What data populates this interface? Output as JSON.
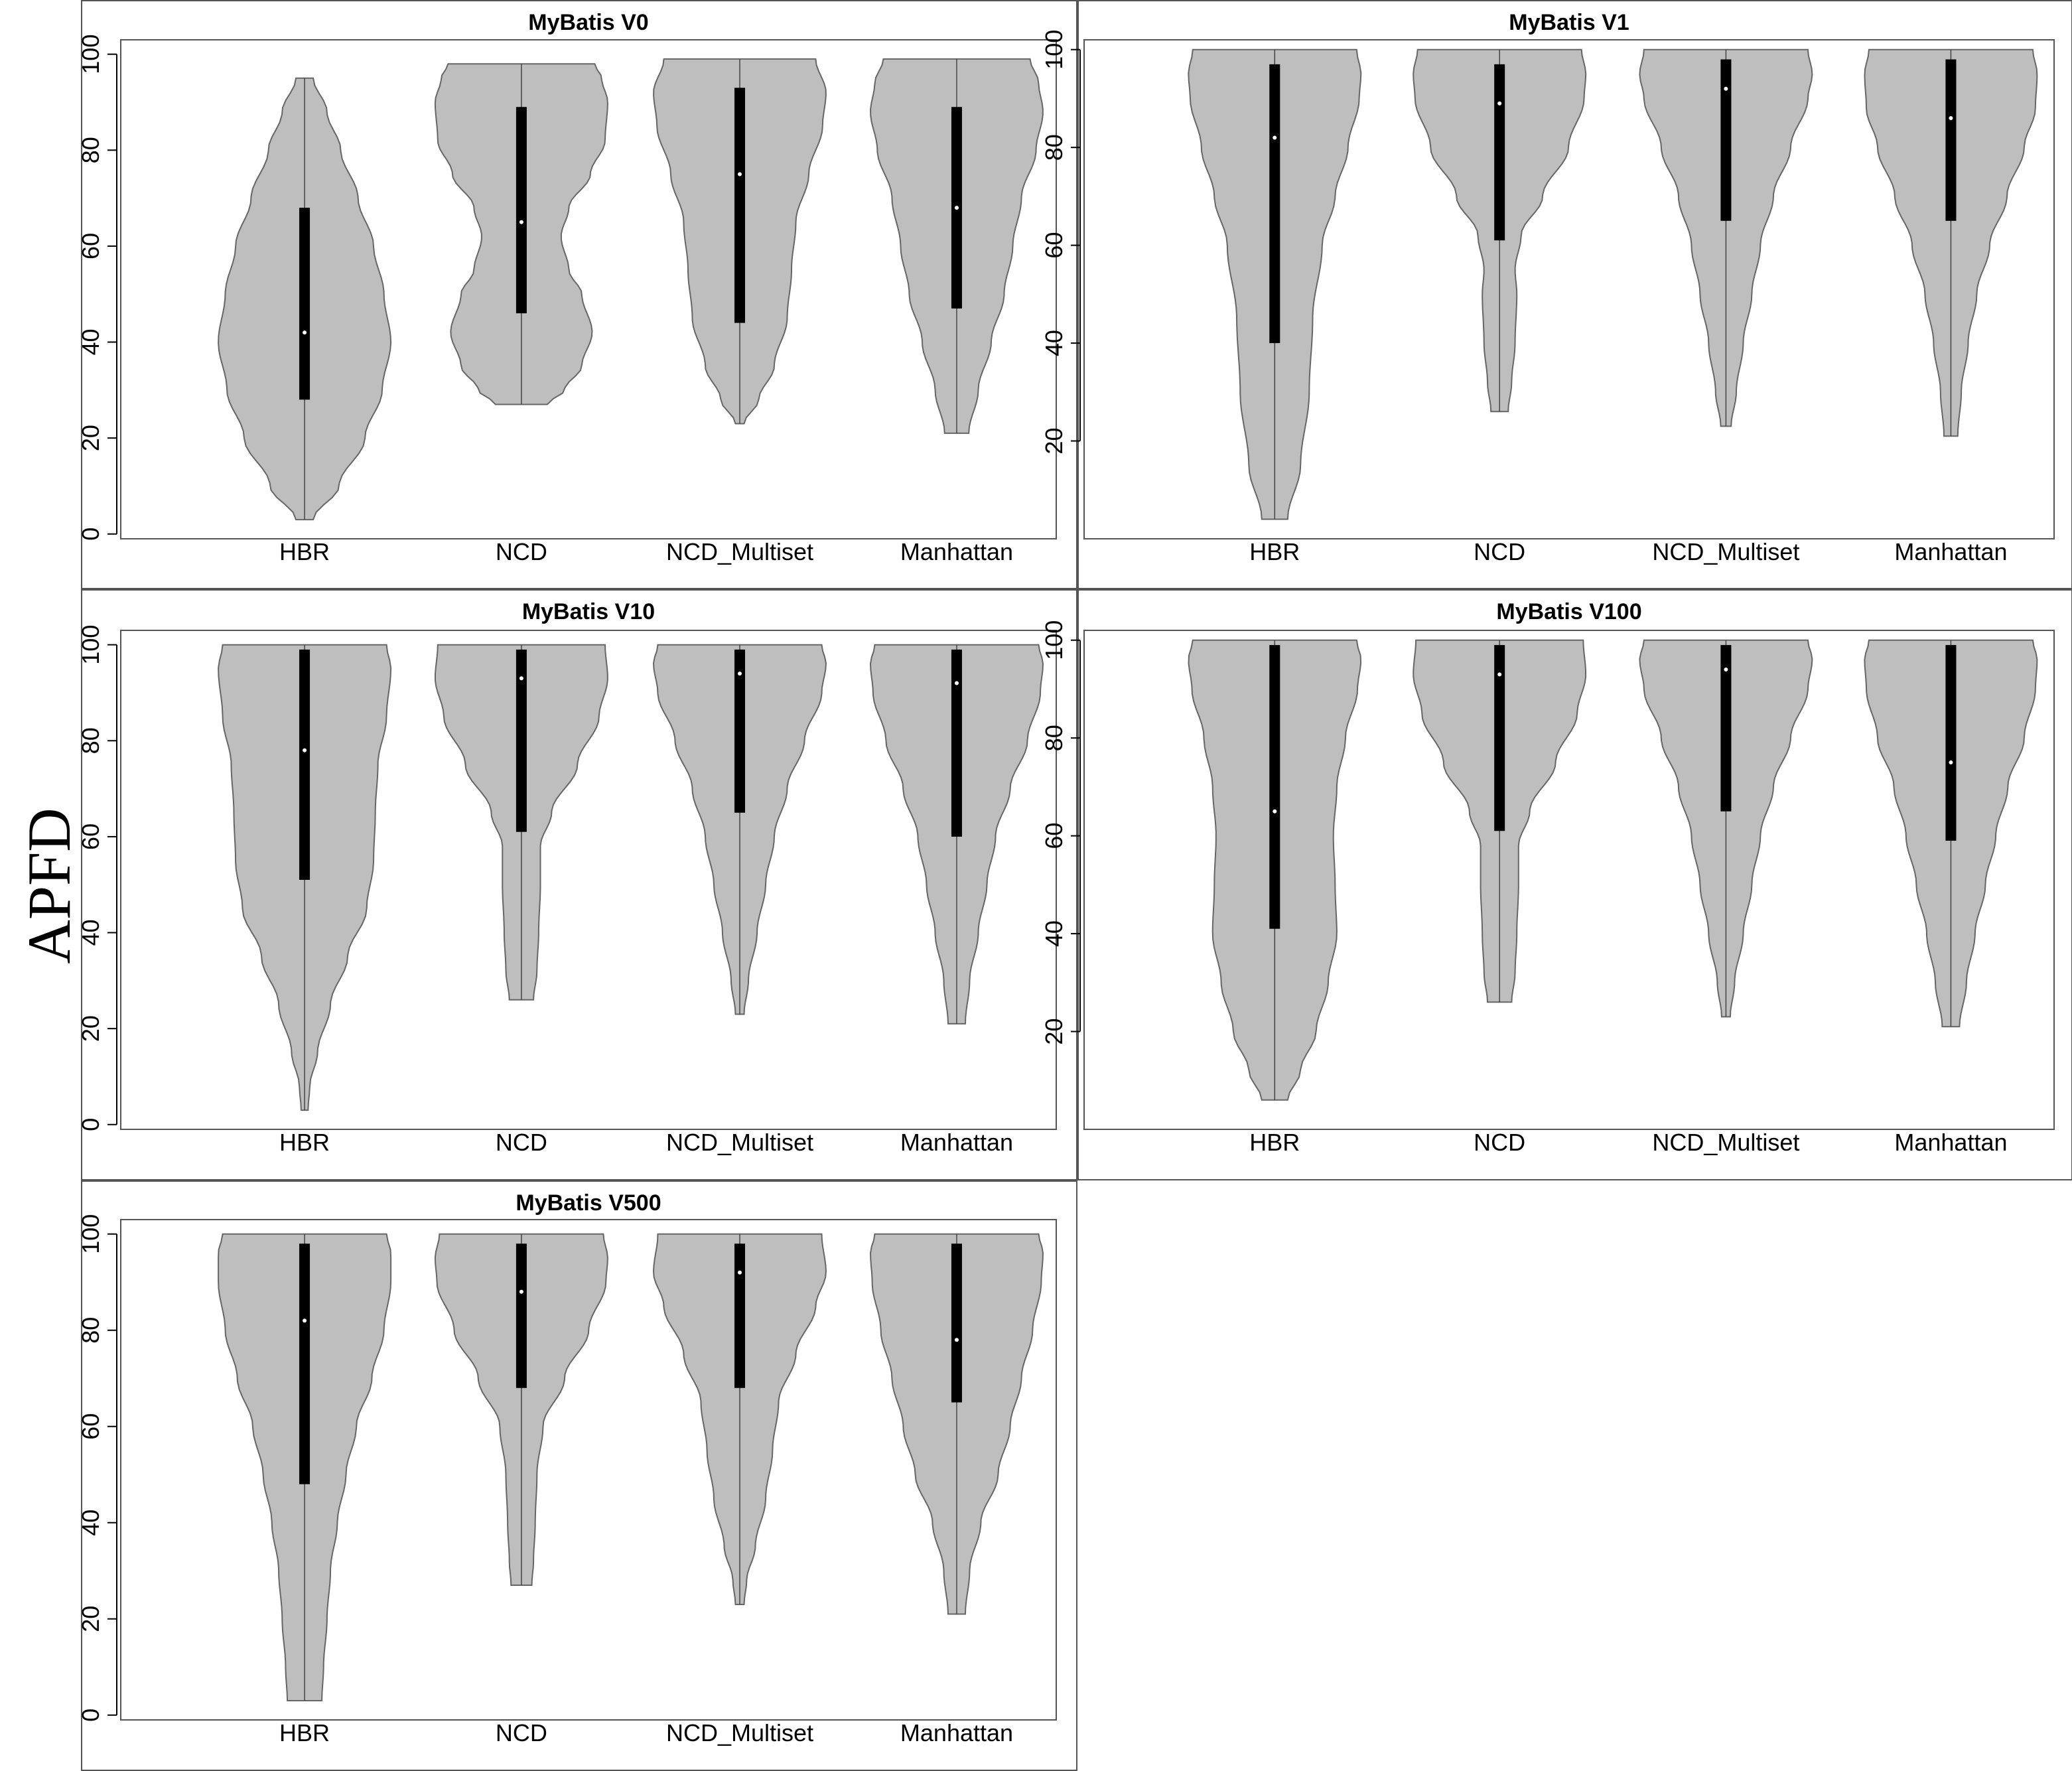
{
  "figure": {
    "ylabel": "APFD",
    "colors": {
      "violin_fill": "#bebebe",
      "violin_stroke": "#666666",
      "box": "#000000",
      "median": "#ffffff",
      "frame": "#555555"
    }
  },
  "chart_data": [
    {
      "type": "violin",
      "title": "MyBatis V0",
      "categories": [
        "HBR",
        "NCD",
        "NCD_Multiset",
        "Manhattan"
      ],
      "yticks": [
        0,
        20,
        40,
        60,
        80,
        100
      ],
      "ylim": [
        -1,
        103
      ],
      "series": [
        {
          "category": "HBR",
          "min": 3,
          "q1": 28,
          "median": 42,
          "q3": 68,
          "max": 95,
          "profile": [
            [
              3,
              0.1
            ],
            [
              10,
              0.4
            ],
            [
              20,
              0.7
            ],
            [
              30,
              0.9
            ],
            [
              40,
              1.0
            ],
            [
              50,
              0.92
            ],
            [
              60,
              0.8
            ],
            [
              70,
              0.62
            ],
            [
              80,
              0.42
            ],
            [
              88,
              0.26
            ],
            [
              95,
              0.1
            ]
          ]
        },
        {
          "category": "NCD",
          "min": 27,
          "q1": 46,
          "median": 65,
          "q3": 89,
          "max": 98,
          "profile": [
            [
              27,
              0.3
            ],
            [
              30,
              0.5
            ],
            [
              35,
              0.7
            ],
            [
              42,
              0.82
            ],
            [
              50,
              0.7
            ],
            [
              55,
              0.55
            ],
            [
              62,
              0.46
            ],
            [
              68,
              0.55
            ],
            [
              75,
              0.8
            ],
            [
              82,
              0.97
            ],
            [
              90,
              1.0
            ],
            [
              95,
              0.93
            ],
            [
              98,
              0.85
            ]
          ]
        },
        {
          "category": "NCD_Multiset",
          "min": 23,
          "q1": 44,
          "median": 75,
          "q3": 93,
          "max": 99,
          "profile": [
            [
              23,
              0.05
            ],
            [
              28,
              0.22
            ],
            [
              35,
              0.4
            ],
            [
              45,
              0.55
            ],
            [
              55,
              0.6
            ],
            [
              65,
              0.65
            ],
            [
              75,
              0.8
            ],
            [
              85,
              0.96
            ],
            [
              92,
              1.0
            ],
            [
              99,
              0.88
            ]
          ]
        },
        {
          "category": "Manhattan",
          "min": 21,
          "q1": 47,
          "median": 68,
          "q3": 89,
          "max": 99,
          "profile": [
            [
              21,
              0.14
            ],
            [
              30,
              0.25
            ],
            [
              40,
              0.4
            ],
            [
              50,
              0.55
            ],
            [
              60,
              0.65
            ],
            [
              70,
              0.75
            ],
            [
              80,
              0.92
            ],
            [
              88,
              1.0
            ],
            [
              94,
              0.95
            ],
            [
              99,
              0.85
            ]
          ]
        }
      ]
    },
    {
      "type": "violin",
      "title": "MyBatis V1",
      "categories": [
        "HBR",
        "NCD",
        "NCD_Multiset",
        "Manhattan"
      ],
      "yticks": [
        20,
        40,
        60,
        80,
        100
      ],
      "ylim": [
        0,
        102
      ],
      "series": [
        {
          "category": "HBR",
          "min": 4,
          "q1": 40,
          "median": 82,
          "q3": 97,
          "max": 100,
          "profile": [
            [
              4,
              0.15
            ],
            [
              15,
              0.3
            ],
            [
              30,
              0.4
            ],
            [
              45,
              0.44
            ],
            [
              60,
              0.55
            ],
            [
              70,
              0.7
            ],
            [
              80,
              0.85
            ],
            [
              90,
              0.98
            ],
            [
              95,
              1.0
            ],
            [
              100,
              0.95
            ]
          ]
        },
        {
          "category": "NCD",
          "min": 26,
          "q1": 61,
          "median": 89,
          "q3": 97,
          "max": 100,
          "profile": [
            [
              26,
              0.1
            ],
            [
              32,
              0.14
            ],
            [
              40,
              0.18
            ],
            [
              50,
              0.2
            ],
            [
              55,
              0.18
            ],
            [
              62,
              0.25
            ],
            [
              70,
              0.5
            ],
            [
              80,
              0.8
            ],
            [
              90,
              0.98
            ],
            [
              95,
              1.0
            ],
            [
              100,
              0.95
            ]
          ]
        },
        {
          "category": "NCD_Multiset",
          "min": 23,
          "q1": 65,
          "median": 92,
          "q3": 98,
          "max": 100,
          "profile": [
            [
              23,
              0.06
            ],
            [
              30,
              0.12
            ],
            [
              40,
              0.2
            ],
            [
              50,
              0.3
            ],
            [
              60,
              0.4
            ],
            [
              70,
              0.55
            ],
            [
              80,
              0.75
            ],
            [
              90,
              0.95
            ],
            [
              95,
              1.0
            ],
            [
              100,
              0.95
            ]
          ]
        },
        {
          "category": "Manhattan",
          "min": 21,
          "q1": 65,
          "median": 86,
          "q3": 98,
          "max": 100,
          "profile": [
            [
              21,
              0.08
            ],
            [
              30,
              0.12
            ],
            [
              40,
              0.2
            ],
            [
              50,
              0.3
            ],
            [
              60,
              0.45
            ],
            [
              70,
              0.65
            ],
            [
              80,
              0.85
            ],
            [
              88,
              0.98
            ],
            [
              95,
              1.0
            ],
            [
              100,
              0.95
            ]
          ]
        }
      ]
    },
    {
      "type": "violin",
      "title": "MyBatis V10",
      "categories": [
        "HBR",
        "NCD",
        "NCD_Multiset",
        "Manhattan"
      ],
      "yticks": [
        0,
        20,
        40,
        60,
        80,
        100
      ],
      "ylim": [
        -1,
        103
      ],
      "series": [
        {
          "category": "HBR",
          "min": 3,
          "q1": 51,
          "median": 78,
          "q3": 99,
          "max": 100,
          "profile": [
            [
              3,
              0.04
            ],
            [
              8,
              0.06
            ],
            [
              15,
              0.15
            ],
            [
              25,
              0.3
            ],
            [
              35,
              0.5
            ],
            [
              45,
              0.72
            ],
            [
              55,
              0.8
            ],
            [
              65,
              0.82
            ],
            [
              75,
              0.85
            ],
            [
              85,
              0.95
            ],
            [
              95,
              1.0
            ],
            [
              100,
              0.95
            ]
          ]
        },
        {
          "category": "NCD",
          "min": 26,
          "q1": 61,
          "median": 93,
          "q3": 99,
          "max": 100,
          "profile": [
            [
              26,
              0.14
            ],
            [
              32,
              0.18
            ],
            [
              40,
              0.2
            ],
            [
              50,
              0.22
            ],
            [
              58,
              0.22
            ],
            [
              65,
              0.35
            ],
            [
              75,
              0.65
            ],
            [
              85,
              0.9
            ],
            [
              93,
              1.0
            ],
            [
              100,
              0.97
            ]
          ]
        },
        {
          "category": "NCD_Multiset",
          "min": 23,
          "q1": 65,
          "median": 94,
          "q3": 99,
          "max": 100,
          "profile": [
            [
              23,
              0.05
            ],
            [
              30,
              0.1
            ],
            [
              40,
              0.2
            ],
            [
              50,
              0.3
            ],
            [
              60,
              0.4
            ],
            [
              70,
              0.55
            ],
            [
              80,
              0.75
            ],
            [
              90,
              0.95
            ],
            [
              96,
              1.0
            ],
            [
              100,
              0.95
            ]
          ]
        },
        {
          "category": "Manhattan",
          "min": 21,
          "q1": 60,
          "median": 92,
          "q3": 99,
          "max": 100,
          "profile": [
            [
              21,
              0.1
            ],
            [
              30,
              0.15
            ],
            [
              40,
              0.25
            ],
            [
              50,
              0.35
            ],
            [
              60,
              0.45
            ],
            [
              70,
              0.62
            ],
            [
              80,
              0.82
            ],
            [
              90,
              0.97
            ],
            [
              96,
              1.0
            ],
            [
              100,
              0.95
            ]
          ]
        }
      ]
    },
    {
      "type": "violin",
      "title": "MyBatis V100",
      "categories": [
        "HBR",
        "NCD",
        "NCD_Multiset",
        "Manhattan"
      ],
      "yticks": [
        20,
        40,
        60,
        80,
        100
      ],
      "ylim": [
        0,
        102
      ],
      "series": [
        {
          "category": "HBR",
          "min": 6,
          "q1": 41,
          "median": 65,
          "q3": 99,
          "max": 100,
          "profile": [
            [
              6,
              0.15
            ],
            [
              12,
              0.3
            ],
            [
              20,
              0.48
            ],
            [
              30,
              0.62
            ],
            [
              40,
              0.72
            ],
            [
              50,
              0.7
            ],
            [
              60,
              0.68
            ],
            [
              70,
              0.72
            ],
            [
              80,
              0.82
            ],
            [
              90,
              0.96
            ],
            [
              96,
              1.0
            ],
            [
              100,
              0.95
            ]
          ]
        },
        {
          "category": "NCD",
          "min": 26,
          "q1": 61,
          "median": 93,
          "q3": 99,
          "max": 100,
          "profile": [
            [
              26,
              0.14
            ],
            [
              32,
              0.18
            ],
            [
              40,
              0.2
            ],
            [
              50,
              0.22
            ],
            [
              58,
              0.22
            ],
            [
              65,
              0.35
            ],
            [
              75,
              0.65
            ],
            [
              85,
              0.9
            ],
            [
              93,
              1.0
            ],
            [
              100,
              0.97
            ]
          ]
        },
        {
          "category": "NCD_Multiset",
          "min": 23,
          "q1": 65,
          "median": 94,
          "q3": 99,
          "max": 100,
          "profile": [
            [
              23,
              0.05
            ],
            [
              30,
              0.1
            ],
            [
              40,
              0.2
            ],
            [
              50,
              0.3
            ],
            [
              60,
              0.4
            ],
            [
              70,
              0.55
            ],
            [
              80,
              0.75
            ],
            [
              90,
              0.95
            ],
            [
              96,
              1.0
            ],
            [
              100,
              0.95
            ]
          ]
        },
        {
          "category": "Manhattan",
          "min": 21,
          "q1": 59,
          "median": 75,
          "q3": 99,
          "max": 100,
          "profile": [
            [
              21,
              0.1
            ],
            [
              30,
              0.18
            ],
            [
              40,
              0.28
            ],
            [
              50,
              0.4
            ],
            [
              60,
              0.52
            ],
            [
              70,
              0.66
            ],
            [
              80,
              0.85
            ],
            [
              90,
              0.98
            ],
            [
              96,
              1.0
            ],
            [
              100,
              0.95
            ]
          ]
        }
      ]
    },
    {
      "type": "violin",
      "title": "MyBatis V500",
      "categories": [
        "HBR",
        "NCD",
        "NCD_Multiset",
        "Manhattan"
      ],
      "yticks": [
        0,
        20,
        40,
        60,
        80,
        100
      ],
      "ylim": [
        -1,
        103
      ],
      "series": [
        {
          "category": "HBR",
          "min": 3,
          "q1": 48,
          "median": 82,
          "q3": 98,
          "max": 100,
          "profile": [
            [
              3,
              0.2
            ],
            [
              10,
              0.22
            ],
            [
              20,
              0.26
            ],
            [
              30,
              0.3
            ],
            [
              40,
              0.38
            ],
            [
              50,
              0.48
            ],
            [
              60,
              0.6
            ],
            [
              70,
              0.78
            ],
            [
              80,
              0.92
            ],
            [
              90,
              1.0
            ],
            [
              96,
              1.0
            ],
            [
              100,
              0.95
            ]
          ]
        },
        {
          "category": "NCD",
          "min": 27,
          "q1": 68,
          "median": 88,
          "q3": 98,
          "max": 100,
          "profile": [
            [
              27,
              0.12
            ],
            [
              32,
              0.14
            ],
            [
              40,
              0.16
            ],
            [
              50,
              0.18
            ],
            [
              60,
              0.25
            ],
            [
              70,
              0.5
            ],
            [
              80,
              0.78
            ],
            [
              90,
              0.98
            ],
            [
              95,
              1.0
            ],
            [
              100,
              0.95
            ]
          ]
        },
        {
          "category": "NCD_Multiset",
          "min": 23,
          "q1": 68,
          "median": 92,
          "q3": 98,
          "max": 100,
          "profile": [
            [
              23,
              0.05
            ],
            [
              28,
              0.08
            ],
            [
              35,
              0.18
            ],
            [
              45,
              0.3
            ],
            [
              55,
              0.38
            ],
            [
              65,
              0.45
            ],
            [
              75,
              0.65
            ],
            [
              85,
              0.88
            ],
            [
              92,
              1.0
            ],
            [
              100,
              0.95
            ]
          ]
        },
        {
          "category": "Manhattan",
          "min": 21,
          "q1": 65,
          "median": 78,
          "q3": 98,
          "max": 100,
          "profile": [
            [
              21,
              0.1
            ],
            [
              30,
              0.15
            ],
            [
              40,
              0.28
            ],
            [
              50,
              0.48
            ],
            [
              60,
              0.62
            ],
            [
              70,
              0.75
            ],
            [
              80,
              0.88
            ],
            [
              90,
              0.98
            ],
            [
              96,
              1.0
            ],
            [
              100,
              0.95
            ]
          ]
        }
      ]
    }
  ]
}
